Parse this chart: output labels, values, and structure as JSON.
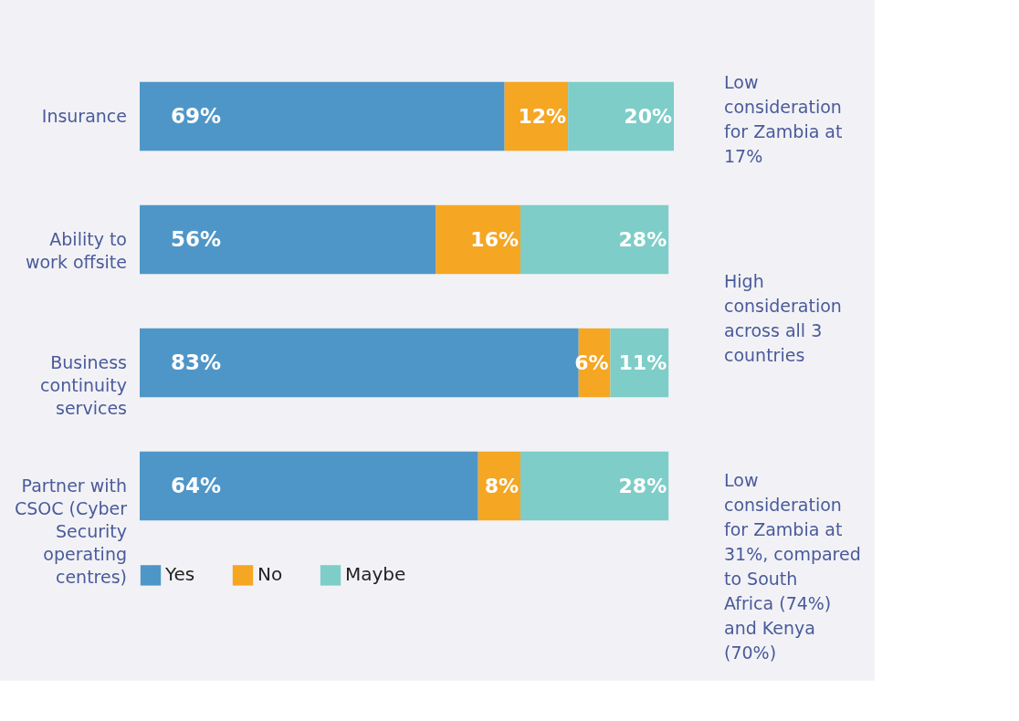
{
  "chart_data": {
    "type": "bar",
    "orientation": "horizontal",
    "stacked": true,
    "tick_labels": "y",
    "legend": "bottom",
    "categories": [
      "Insurance",
      "Ability to work offsite",
      "Business continuity services",
      "Partner with CSOC (Cyber Security operating centres)"
    ],
    "series": [
      {
        "name": "Yes",
        "color": "#4f96c8",
        "values": [
          69,
          56,
          83,
          64
        ],
        "value_labels": [
          "69%",
          "56%",
          "83%",
          "64%"
        ]
      },
      {
        "name": "No",
        "color": "#f5a623",
        "values": [
          12,
          16,
          6,
          8
        ],
        "value_labels": [
          "12%",
          "16%",
          "6%",
          "8%"
        ]
      },
      {
        "name": "Maybe",
        "color": "#7ecdc8",
        "values": [
          20,
          28,
          11,
          28
        ],
        "value_labels": [
          "20%",
          "28%",
          "11%",
          "28%"
        ]
      }
    ],
    "annotations": [
      "Low consideration for Zambia at 17%",
      "High consideration across all 3 countries",
      "Low consideration for Zambia at 31%, compared to South Africa (74%) and Kenya (70%)"
    ]
  }
}
